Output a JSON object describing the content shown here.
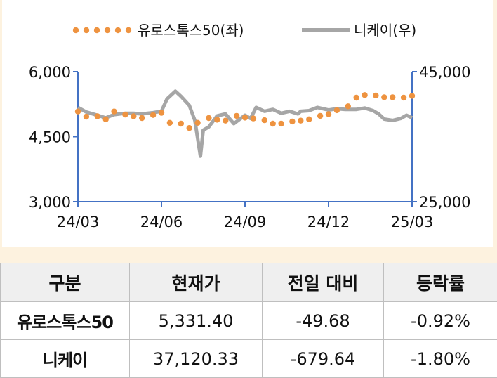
{
  "chart_data": {
    "type": "line",
    "title": "",
    "x_ticks": [
      "24/03",
      "24/06",
      "24/09",
      "24/12",
      "25/03"
    ],
    "y_left": {
      "min": 3000,
      "max": 6000,
      "ticks": [
        "6,000",
        "4,500",
        "3,000"
      ]
    },
    "y_right": {
      "min": 25000,
      "max": 45000,
      "ticks": [
        "45,000",
        "25,000"
      ]
    },
    "grid": false,
    "legend_position": "top",
    "series": [
      {
        "name": "유로스톡스50(좌)",
        "axis": "left",
        "style": "dotted",
        "color": "#ee9340",
        "points": [
          [
            "24/03",
            5080
          ],
          [
            "24/03.3",
            4960
          ],
          [
            "24/03.7",
            4970
          ],
          [
            "24/04",
            4900
          ],
          [
            "24/04.3",
            5080
          ],
          [
            "24/04.7",
            5010
          ],
          [
            "24/05",
            4970
          ],
          [
            "24/05.3",
            4930
          ],
          [
            "24/05.7",
            5000
          ],
          [
            "24/06",
            5050
          ],
          [
            "24/06.3",
            4820
          ],
          [
            "24/06.7",
            4800
          ],
          [
            "24/07",
            4700
          ],
          [
            "24/07.3",
            4820
          ],
          [
            "24/07.7",
            4930
          ],
          [
            "24/08",
            4890
          ],
          [
            "24/08.3",
            4870
          ],
          [
            "24/08.7",
            4980
          ],
          [
            "24/09",
            4940
          ],
          [
            "24/09.3",
            4920
          ],
          [
            "24/09.7",
            4880
          ],
          [
            "24/10",
            4800
          ],
          [
            "24/10.3",
            4800
          ],
          [
            "24/10.7",
            4850
          ],
          [
            "24/11",
            4870
          ],
          [
            "24/11.3",
            4900
          ],
          [
            "24/11.7",
            4980
          ],
          [
            "24/12",
            5020
          ],
          [
            "24/12.3",
            5110
          ],
          [
            "24/12.7",
            5200
          ],
          [
            "25/01",
            5400
          ],
          [
            "25/01.3",
            5460
          ],
          [
            "25/01.7",
            5450
          ],
          [
            "25/02",
            5410
          ],
          [
            "25/02.3",
            5410
          ],
          [
            "25/02.7",
            5400
          ],
          [
            "25/03",
            5440
          ]
        ]
      },
      {
        "name": "니케이(우)",
        "axis": "right",
        "style": "solid",
        "color": "#a6a6a6",
        "points": [
          [
            "24/03",
            39500
          ],
          [
            "24/03.3",
            38800
          ],
          [
            "24/03.7",
            38300
          ],
          [
            "24/04",
            37900
          ],
          [
            "24/04.3",
            38400
          ],
          [
            "24/04.7",
            38600
          ],
          [
            "24/05",
            38600
          ],
          [
            "24/05.3",
            38500
          ],
          [
            "24/05.7",
            38700
          ],
          [
            "24/06",
            38900
          ],
          [
            "24/06.2",
            40800
          ],
          [
            "24/06.5",
            42000
          ],
          [
            "24/06.7",
            41200
          ],
          [
            "24/07",
            39800
          ],
          [
            "24/07.2",
            37500
          ],
          [
            "24/07.4",
            32000
          ],
          [
            "24/07.5",
            36000
          ],
          [
            "24/07.7",
            36500
          ],
          [
            "24/08",
            38200
          ],
          [
            "24/08.3",
            38500
          ],
          [
            "24/08.6",
            37000
          ],
          [
            "24/09",
            38300
          ],
          [
            "24/09.2",
            37800
          ],
          [
            "24/09.4",
            39500
          ],
          [
            "24/09.7",
            38900
          ],
          [
            "24/10",
            39200
          ],
          [
            "24/10.3",
            38600
          ],
          [
            "24/10.6",
            38900
          ],
          [
            "24/10.9",
            38500
          ],
          [
            "24/11",
            38900
          ],
          [
            "24/11.3",
            39000
          ],
          [
            "24/11.6",
            39500
          ],
          [
            "24/12",
            39100
          ],
          [
            "24/12.3",
            39300
          ],
          [
            "24/12.6",
            39200
          ],
          [
            "25/01",
            39200
          ],
          [
            "25/01.3",
            39400
          ],
          [
            "25/01.6",
            39000
          ],
          [
            "25/01.8",
            38500
          ],
          [
            "25/02",
            37700
          ],
          [
            "25/02.3",
            37500
          ],
          [
            "25/02.6",
            37800
          ],
          [
            "25/02.8",
            38300
          ],
          [
            "25/03",
            37900
          ]
        ]
      }
    ]
  },
  "table": {
    "headers": [
      "구분",
      "현재가",
      "전일 대비",
      "등락률"
    ],
    "rows": [
      {
        "name": "유로스톡스50",
        "price": "5,331.40",
        "change": "-49.68",
        "rate": "-0.92%"
      },
      {
        "name": "니케이",
        "price": "37,120.33",
        "change": "-679.64",
        "rate": "-1.80%"
      }
    ]
  }
}
